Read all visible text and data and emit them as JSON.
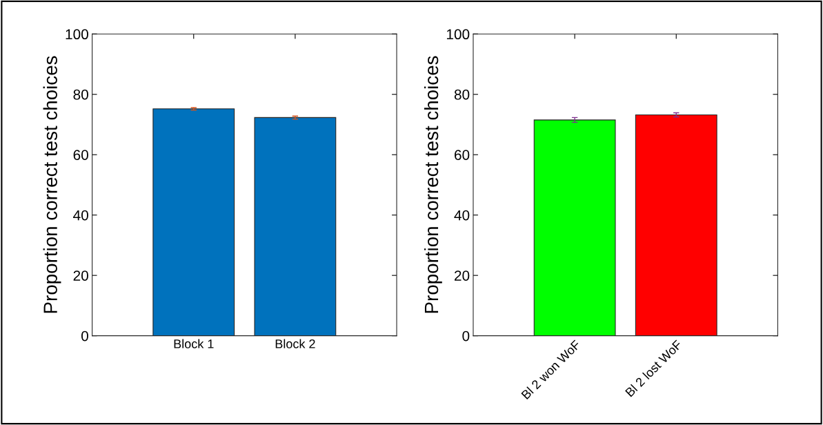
{
  "chart_data": [
    {
      "type": "bar",
      "ylabel": "Proportion correct test choices",
      "categories": [
        "Block 1",
        "Block 2"
      ],
      "values": [
        75.2,
        72.3
      ],
      "errors": [
        0.4,
        0.5
      ],
      "colors": [
        "#0072bd",
        "#0072bd"
      ],
      "ylim": [
        0,
        100
      ],
      "yticks": [
        0,
        20,
        40,
        60,
        80,
        100
      ],
      "grid": false
    },
    {
      "type": "bar",
      "ylabel": "Proportion correct test choices",
      "categories": [
        "Bl 2 won WoF",
        "Bl 2 lost WoF"
      ],
      "values": [
        71.5,
        73.2
      ],
      "errors": [
        0.8,
        0.7
      ],
      "colors": [
        "#00ff00",
        "#ff0000"
      ],
      "ylim": [
        0,
        100
      ],
      "yticks": [
        0,
        20,
        40,
        60,
        80,
        100
      ],
      "grid": false
    }
  ]
}
